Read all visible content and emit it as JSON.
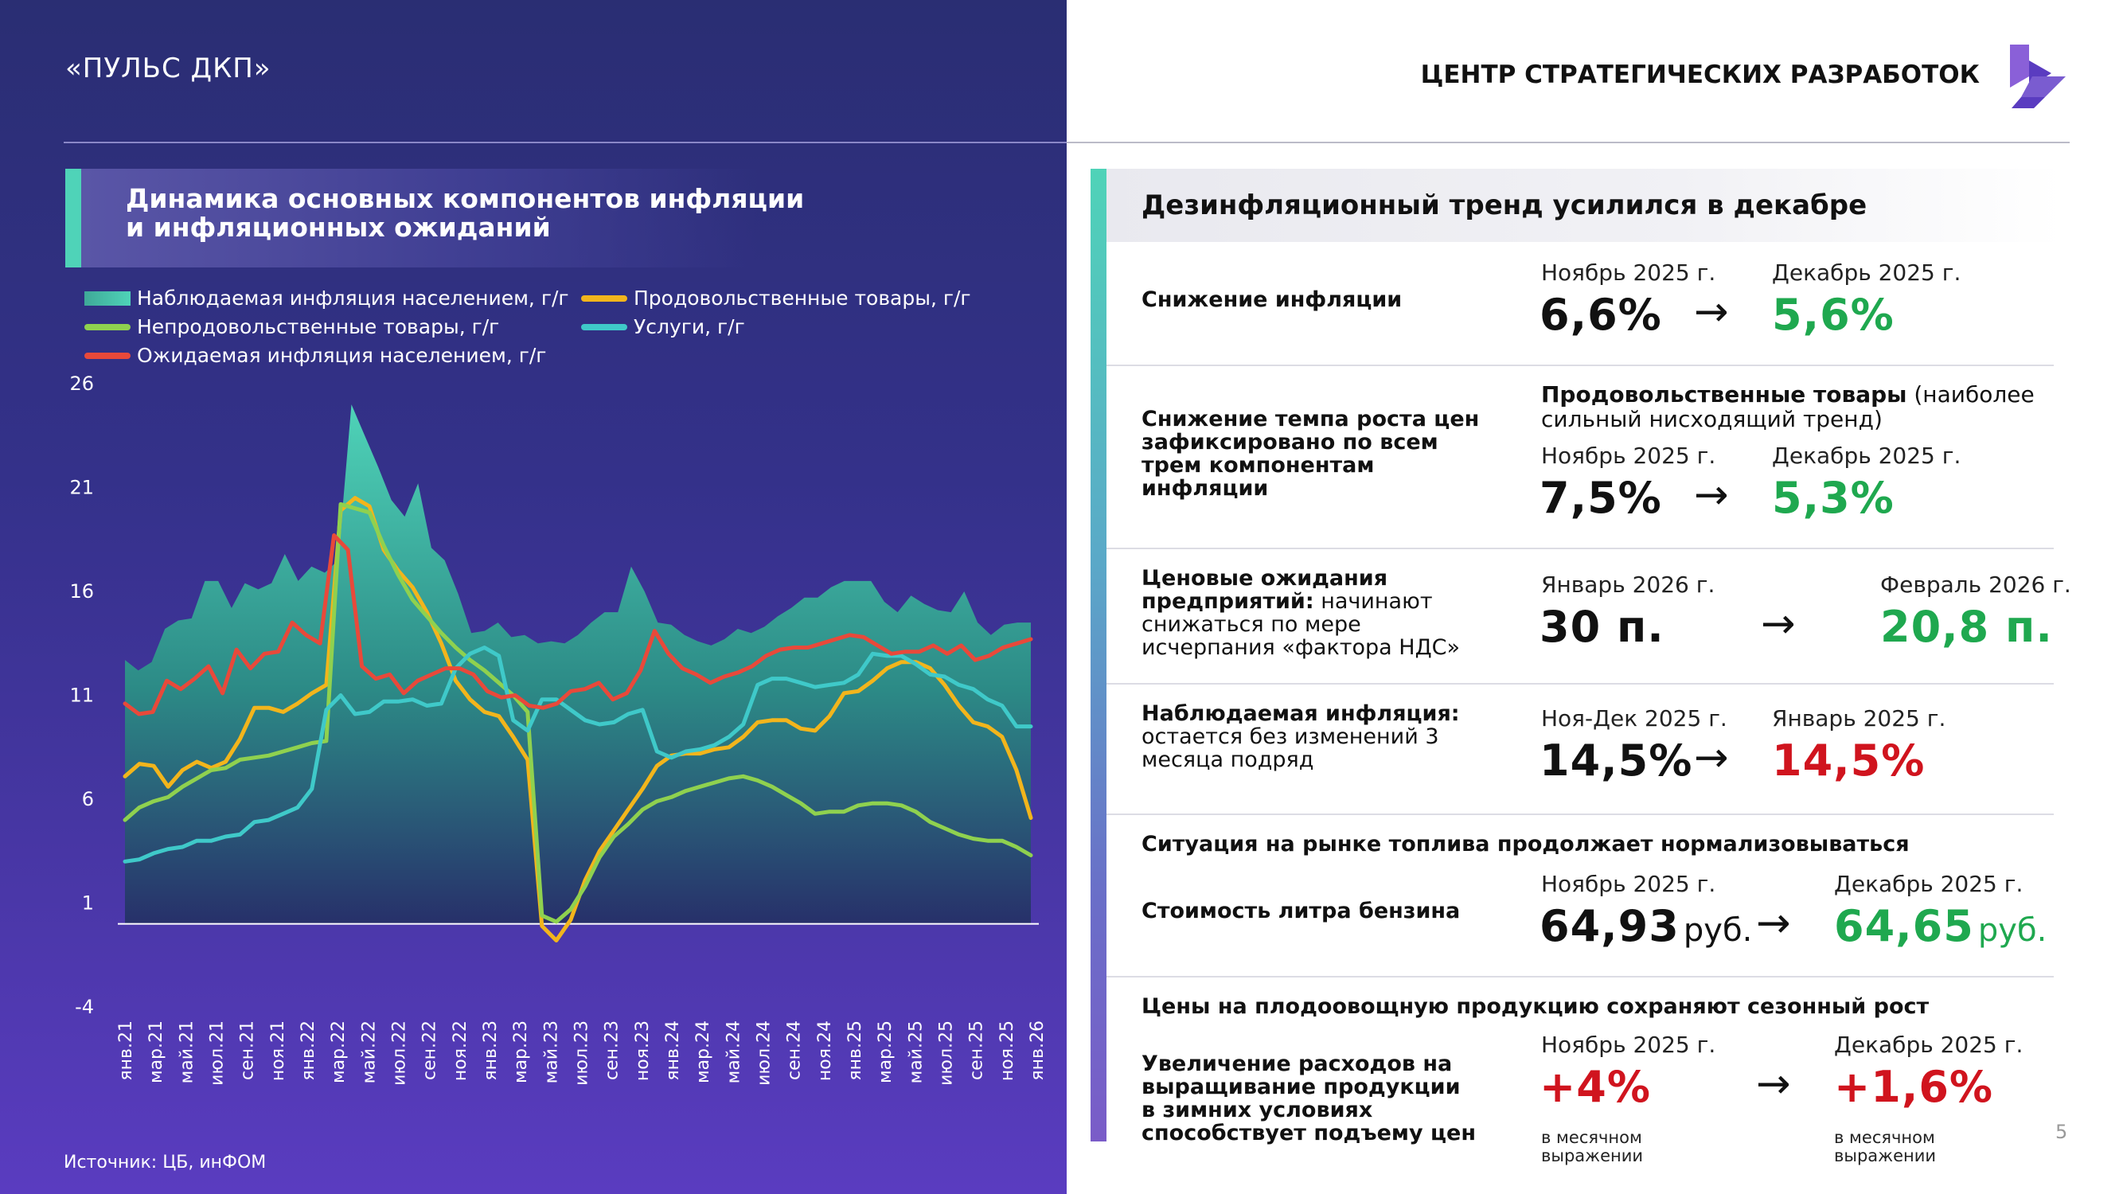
{
  "header": {
    "left_title": "«ПУЛЬС ДКП»",
    "brand_name": "ЦЕНТР СТРАТЕГИЧЕСКИХ РАЗРАБОТОК",
    "brand_color": "#5a3cc0"
  },
  "left": {
    "chart_title": "Динамика основных компонентов инфляции и инфляционных ожиданий",
    "source": "Источник: ЦБ, инФОМ"
  },
  "chart_data": {
    "type": "line",
    "title": "Динамика основных компонентов инфляции и инфляционных ожиданий",
    "ylim": [
      -4,
      26
    ],
    "yticks": [
      -4,
      1,
      6,
      11,
      16,
      21,
      26
    ],
    "x_labels": [
      "янв.21",
      "мар.21",
      "май.21",
      "июл.21",
      "сен.21",
      "ноя.21",
      "янв.22",
      "мар.22",
      "май.22",
      "июл.22",
      "сен.22",
      "ноя.22",
      "янв.23",
      "мар.23",
      "май.23",
      "июл.23",
      "сен.23",
      "ноя.23",
      "янв.24",
      "мар.24",
      "май.24",
      "июл.24",
      "сен.24",
      "ноя.24",
      "янв.25",
      "мар.25",
      "май.25",
      "июл.25",
      "сен.25",
      "ноя.25",
      "янв.26"
    ],
    "legend_position": "top-left",
    "grid": false,
    "series": [
      {
        "name": "Наблюдаемая инфляция населением, г/г",
        "kind": "area",
        "color": "#4fd3b8",
        "values": [
          12.7,
          12.2,
          12.6,
          14.2,
          14.6,
          14.7,
          16.5,
          16.5,
          15.2,
          16.4,
          16.1,
          16.4,
          17.8,
          16.5,
          17.2,
          16.9,
          17.5,
          25.0,
          23.5,
          22.0,
          20.4,
          19.6,
          21.2,
          18.1,
          17.5,
          15.9,
          14.0,
          14.1,
          14.5,
          13.8,
          13.9,
          13.5,
          13.6,
          13.5,
          13.9,
          14.5,
          15.0,
          15.0,
          17.2,
          16.0,
          14.5,
          14.4,
          13.9,
          13.6,
          13.4,
          13.7,
          14.2,
          14.0,
          14.3,
          14.8,
          15.2,
          15.7,
          15.7,
          16.2,
          16.5,
          16.5,
          16.5,
          15.5,
          15.0,
          15.8,
          15.4,
          15.1,
          15.0,
          16.0,
          14.5,
          13.9,
          14.4,
          14.5,
          14.5
        ]
      },
      {
        "name": "Продовольственные товары, г/г",
        "kind": "line",
        "color": "#f2b51c",
        "values": [
          7.1,
          7.7,
          7.6,
          6.6,
          7.4,
          7.8,
          7.5,
          7.8,
          8.9,
          10.4,
          10.4,
          10.2,
          10.6,
          11.1,
          11.5,
          19.9,
          20.5,
          20.1,
          18.0,
          17.0,
          16.2,
          15.0,
          13.5,
          11.7,
          10.8,
          10.2,
          10.0,
          9.0,
          7.9,
          -0.1,
          -0.8,
          0.2,
          2.1,
          3.5,
          4.5,
          5.5,
          6.5,
          7.6,
          8.1,
          8.2,
          8.2,
          8.4,
          8.5,
          9.0,
          9.7,
          9.8,
          9.8,
          9.4,
          9.3,
          10.0,
          11.1,
          11.2,
          11.7,
          12.3,
          12.6,
          12.6,
          12.3,
          11.5,
          10.5,
          9.7,
          9.5,
          9.0,
          7.4,
          5.1
        ]
      },
      {
        "name": "Непродовольственные товары, г/г",
        "kind": "line",
        "color": "#8fd14f",
        "values": [
          5.0,
          5.6,
          5.9,
          6.1,
          6.6,
          7.0,
          7.4,
          7.5,
          7.9,
          8.0,
          8.1,
          8.3,
          8.5,
          8.7,
          8.8,
          20.2,
          20.0,
          19.8,
          18.2,
          16.8,
          15.6,
          14.8,
          14.0,
          13.3,
          12.7,
          12.2,
          11.6,
          11.0,
          10.2,
          0.4,
          0.1,
          0.7,
          1.8,
          3.2,
          4.2,
          4.8,
          5.5,
          5.9,
          6.1,
          6.4,
          6.6,
          6.8,
          7.0,
          7.1,
          6.9,
          6.6,
          6.2,
          5.8,
          5.3,
          5.4,
          5.4,
          5.7,
          5.8,
          5.8,
          5.7,
          5.4,
          4.9,
          4.6,
          4.3,
          4.1,
          4.0,
          4.0,
          3.7,
          3.3
        ]
      },
      {
        "name": "Услуги, г/г",
        "kind": "line",
        "color": "#3fc9c9",
        "values": [
          3.0,
          3.1,
          3.4,
          3.6,
          3.7,
          4.0,
          4.0,
          4.2,
          4.3,
          4.9,
          5.0,
          5.3,
          5.6,
          6.5,
          10.3,
          11.0,
          10.1,
          10.2,
          10.7,
          10.7,
          10.8,
          10.5,
          10.6,
          12.3,
          13.0,
          13.3,
          12.9,
          9.8,
          9.3,
          10.8,
          10.8,
          10.3,
          9.8,
          9.6,
          9.7,
          10.1,
          10.3,
          8.3,
          8.0,
          8.3,
          8.4,
          8.6,
          9.0,
          9.6,
          11.5,
          11.8,
          11.8,
          11.6,
          11.4,
          11.5,
          11.6,
          12.0,
          13.0,
          12.9,
          12.9,
          12.5,
          12.0,
          11.9,
          11.5,
          11.3,
          10.8,
          10.5,
          9.5,
          9.5
        ]
      },
      {
        "name": "Ожидаемая инфляция населением, г/г",
        "kind": "line",
        "color": "#e8493a",
        "values": [
          10.6,
          10.1,
          10.2,
          11.7,
          11.3,
          11.8,
          12.4,
          11.1,
          13.2,
          12.3,
          13.0,
          13.1,
          14.5,
          13.9,
          13.5,
          18.7,
          18.0,
          12.4,
          11.8,
          12.0,
          11.1,
          11.7,
          12.0,
          12.3,
          12.3,
          12.0,
          11.2,
          10.9,
          11.0,
          10.5,
          10.4,
          10.6,
          11.2,
          11.3,
          11.6,
          10.8,
          11.1,
          12.2,
          14.1,
          13.0,
          12.3,
          12.0,
          11.6,
          11.9,
          12.1,
          12.4,
          12.9,
          13.2,
          13.3,
          13.3,
          13.5,
          13.7,
          13.9,
          13.8,
          13.4,
          13.0,
          13.1,
          13.1,
          13.4,
          13.0,
          13.4,
          12.7,
          12.9,
          13.3,
          13.5,
          13.7
        ]
      }
    ]
  },
  "right": {
    "header_title": "Дезинфляционный тренд усилился в декабре",
    "rows": {
      "r1": {
        "label": "Снижение инфляции",
        "d1": "Ноябрь 2025 г.",
        "d2": "Декабрь 2025 г.",
        "v1": "6,6%",
        "v2": "5,6%"
      },
      "r2": {
        "label": "Снижение темпа роста цен зафиксировано по всем трем компонентам инфляции",
        "note_bold": "Продовольственные товары",
        "note_rest": " (наиболее сильный нисходящий тренд)",
        "d1": "Ноябрь 2025 г.",
        "d2": "Декабрь 2025 г.",
        "v1": "7,5%",
        "v2": "5,3%"
      },
      "r3": {
        "label_bold": "Ценовые ожидания предприятий:",
        "label_rest": " начинают снижаться по мере исчерпания «фактора НДС»",
        "d1": "Январь 2026 г.",
        "d2": "Февраль 2026 г.",
        "v1": "30 п.",
        "v2": "20,8 п."
      },
      "r4": {
        "label_bold": "Наблюдаемая инфляция:",
        "label_rest": " остается без изменений 3 месяца подряд",
        "d1": "Ноя-Дек 2025 г.",
        "d2": "Январь 2025 г.",
        "v1": "14,5%",
        "v2": "14,5%"
      },
      "r5": {
        "title": "Ситуация на рынке топлива продолжает нормализовываться",
        "label": "Стоимость литра бензина",
        "d1": "Ноябрь 2025 г.",
        "d2": "Декабрь 2025 г.",
        "v1": "64,93",
        "v2": "64,65",
        "unit": "руб."
      },
      "r6": {
        "title": "Цены на плодоовощную продукцию сохраняют сезонный рост",
        "label": "Увеличение расходов на выращивание продукции в зимних условиях способствует подъему цен",
        "d1": "Ноябрь 2025 г.",
        "d2": "Декабрь 2025 г.",
        "v1": "+4%",
        "v2": "+1,6%",
        "note": "в месячном выражении"
      }
    },
    "arrow": "→",
    "page_number": "5"
  }
}
